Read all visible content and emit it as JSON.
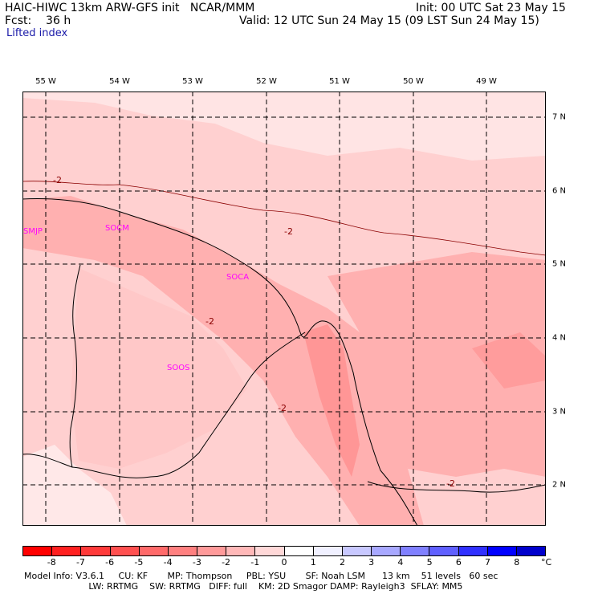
{
  "header": {
    "line1_left": "HAIC-HIWC 13km ARW-GFS init   NCAR/MMM",
    "line1_right": "Init: 00 UTC Sat 23 May 15",
    "line2_left": "Fcst:    36 h",
    "line2_right": "Valid: 12 UTC Sun 24 May 15 (09 LST Sun 24 May 15)",
    "variable": "Lifted index"
  },
  "map": {
    "longitude_labels": [
      "55 W",
      "54 W",
      "53 W",
      "52 W",
      "51 W",
      "50 W",
      "49 W"
    ],
    "latitude_labels": [
      "7 N",
      "6 N",
      "5 N",
      "4 N",
      "3 N",
      "2 N"
    ],
    "contour_labels": [
      "-2",
      "-2",
      "-2",
      "-2",
      "-2"
    ],
    "stations": [
      "SMJP",
      "SOCM",
      "SOCA",
      "SOOS"
    ],
    "colors": {
      "light": "#ffd0d0",
      "medium": "#ffb0b0",
      "dark": "#ff9090",
      "pale": "#ffe8e8"
    }
  },
  "colorbar": {
    "ticks": [
      "-8",
      "-7",
      "-6",
      "-5",
      "-4",
      "-3",
      "-2",
      "-1",
      "0",
      "1",
      "2",
      "3",
      "4",
      "5",
      "6",
      "7",
      "8"
    ],
    "unit": "°C",
    "colors": [
      "#ff0000",
      "#ff2020",
      "#ff3a3a",
      "#ff5050",
      "#ff6a6a",
      "#ff8080",
      "#ff9a9a",
      "#ffb8b8",
      "#ffd8d8",
      "#ffffff",
      "#f0f0ff",
      "#c8c8ff",
      "#a8a8ff",
      "#8080ff",
      "#6060ff",
      "#3030ff",
      "#0000ff",
      "#0000cc"
    ]
  },
  "footer": {
    "line1": "Model Info: V3.6.1     CU: KF       MP: Thompson     PBL: YSU       SF: Noah LSM      13 km    51 levels   60 sec",
    "line2": "                       LW: RRTMG    SW: RRTMG   DIFF: full    KM: 2D Smagor DAMP: Rayleigh3  SFLAY: MM5"
  }
}
